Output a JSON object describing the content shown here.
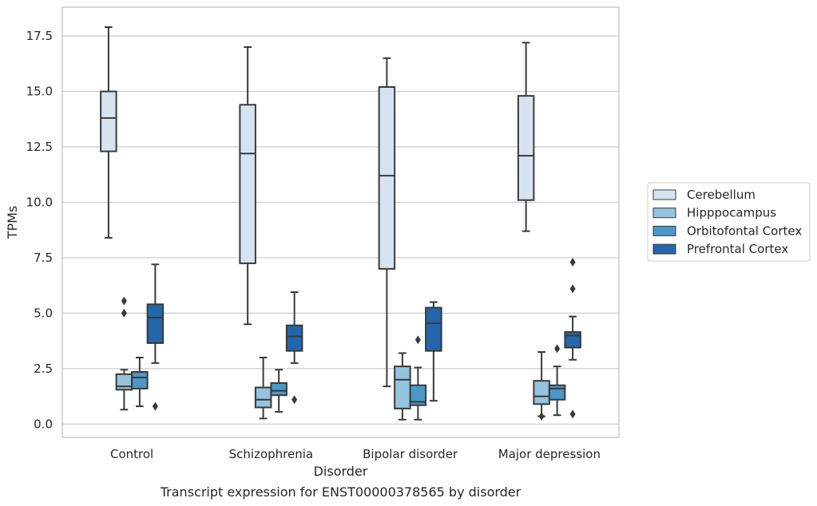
{
  "chart_data": {
    "type": "box",
    "title": "Transcript expression for ENST00000378565 by disorder",
    "xlabel": "Disorder",
    "ylabel": "TPMs",
    "ylim": [
      -0.6,
      18.8
    ],
    "yticks": [
      "0.0",
      "2.5",
      "5.0",
      "7.5",
      "10.0",
      "12.5",
      "15.0",
      "17.5"
    ],
    "yticks_values": [
      0,
      2.5,
      5,
      7.5,
      10,
      12.5,
      15,
      17.5
    ],
    "grid": "horizontal",
    "legend_position": "outside-right",
    "categories": [
      "Control",
      "Schizophrenia",
      "Bipolar disorder",
      "Major depression"
    ],
    "series": [
      {
        "name": "Cerebellum",
        "color": "#d6e4f2",
        "boxes": [
          {
            "min": 8.4,
            "q1": 12.3,
            "median": 13.8,
            "q3": 15.0,
            "max": 17.9,
            "outliers": []
          },
          {
            "min": 4.5,
            "q1": 7.25,
            "median": 12.2,
            "q3": 14.4,
            "max": 17.0,
            "outliers": []
          },
          {
            "min": 1.7,
            "q1": 7.0,
            "median": 11.2,
            "q3": 15.2,
            "max": 16.5,
            "outliers": []
          },
          {
            "min": 8.7,
            "q1": 10.1,
            "median": 12.1,
            "q3": 14.8,
            "max": 17.2,
            "outliers": []
          }
        ]
      },
      {
        "name": "Hipppocampus",
        "color": "#94c4df",
        "boxes": [
          {
            "min": 0.65,
            "q1": 1.55,
            "median": 1.7,
            "q3": 2.25,
            "max": 2.45,
            "outliers": [
              5.0,
              5.55
            ]
          },
          {
            "min": 0.25,
            "q1": 0.75,
            "median": 1.1,
            "q3": 1.65,
            "max": 3.0,
            "outliers": []
          },
          {
            "min": 0.2,
            "q1": 0.7,
            "median": 2.0,
            "q3": 2.6,
            "max": 3.2,
            "outliers": []
          },
          {
            "min": 0.35,
            "q1": 0.9,
            "median": 1.25,
            "q3": 1.95,
            "max": 3.25,
            "outliers": [
              0.35
            ]
          }
        ]
      },
      {
        "name": "Orbitofontal Cortex",
        "color": "#4b98c9",
        "boxes": [
          {
            "min": 0.8,
            "q1": 1.6,
            "median": 2.1,
            "q3": 2.35,
            "max": 3.0,
            "outliers": []
          },
          {
            "min": 0.55,
            "q1": 1.3,
            "median": 1.5,
            "q3": 1.85,
            "max": 2.45,
            "outliers": []
          },
          {
            "min": 0.2,
            "q1": 0.85,
            "median": 1.0,
            "q3": 1.75,
            "max": 2.55,
            "outliers": [
              3.8
            ]
          },
          {
            "min": 0.4,
            "q1": 1.1,
            "median": 1.6,
            "q3": 1.75,
            "max": 2.6,
            "outliers": [
              3.4
            ]
          }
        ]
      },
      {
        "name": "Prefrontal Cortex",
        "color": "#2366ac",
        "boxes": [
          {
            "min": 2.75,
            "q1": 3.65,
            "median": 4.8,
            "q3": 5.4,
            "max": 7.2,
            "outliers": [
              0.8
            ]
          },
          {
            "min": 2.75,
            "q1": 3.3,
            "median": 3.95,
            "q3": 4.45,
            "max": 5.95,
            "outliers": [
              1.1
            ]
          },
          {
            "min": 1.05,
            "q1": 3.3,
            "median": 4.55,
            "q3": 5.25,
            "max": 5.5,
            "outliers": []
          },
          {
            "min": 2.9,
            "q1": 3.45,
            "median": 4.0,
            "q3": 4.15,
            "max": 4.85,
            "outliers": [
              0.45,
              6.1,
              7.3
            ]
          }
        ]
      }
    ]
  }
}
